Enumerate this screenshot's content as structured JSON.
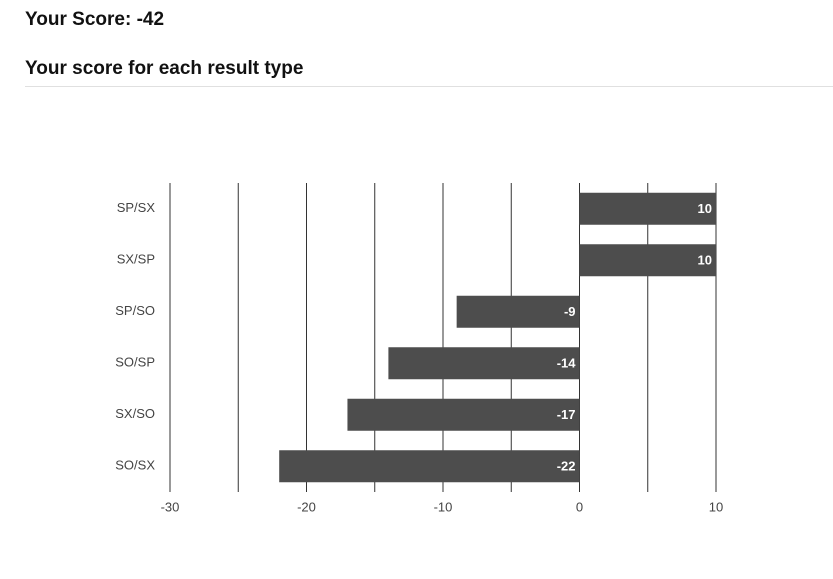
{
  "score": {
    "label": "Your Score:",
    "value": -42
  },
  "section_title": "Your score for each result type",
  "chart_data": {
    "type": "bar",
    "orientation": "horizontal",
    "categories": [
      "SP/SX",
      "SX/SP",
      "SP/SO",
      "SO/SP",
      "SX/SO",
      "SO/SX"
    ],
    "values": [
      10,
      10,
      -9,
      -14,
      -17,
      -22
    ],
    "color": "#4d4d4d",
    "xlim": [
      -30,
      10
    ],
    "xticks": [
      -30,
      -20,
      -10,
      0,
      10
    ],
    "minor_gridlines": [
      -25,
      -15,
      -5,
      5
    ],
    "grid": true
  }
}
